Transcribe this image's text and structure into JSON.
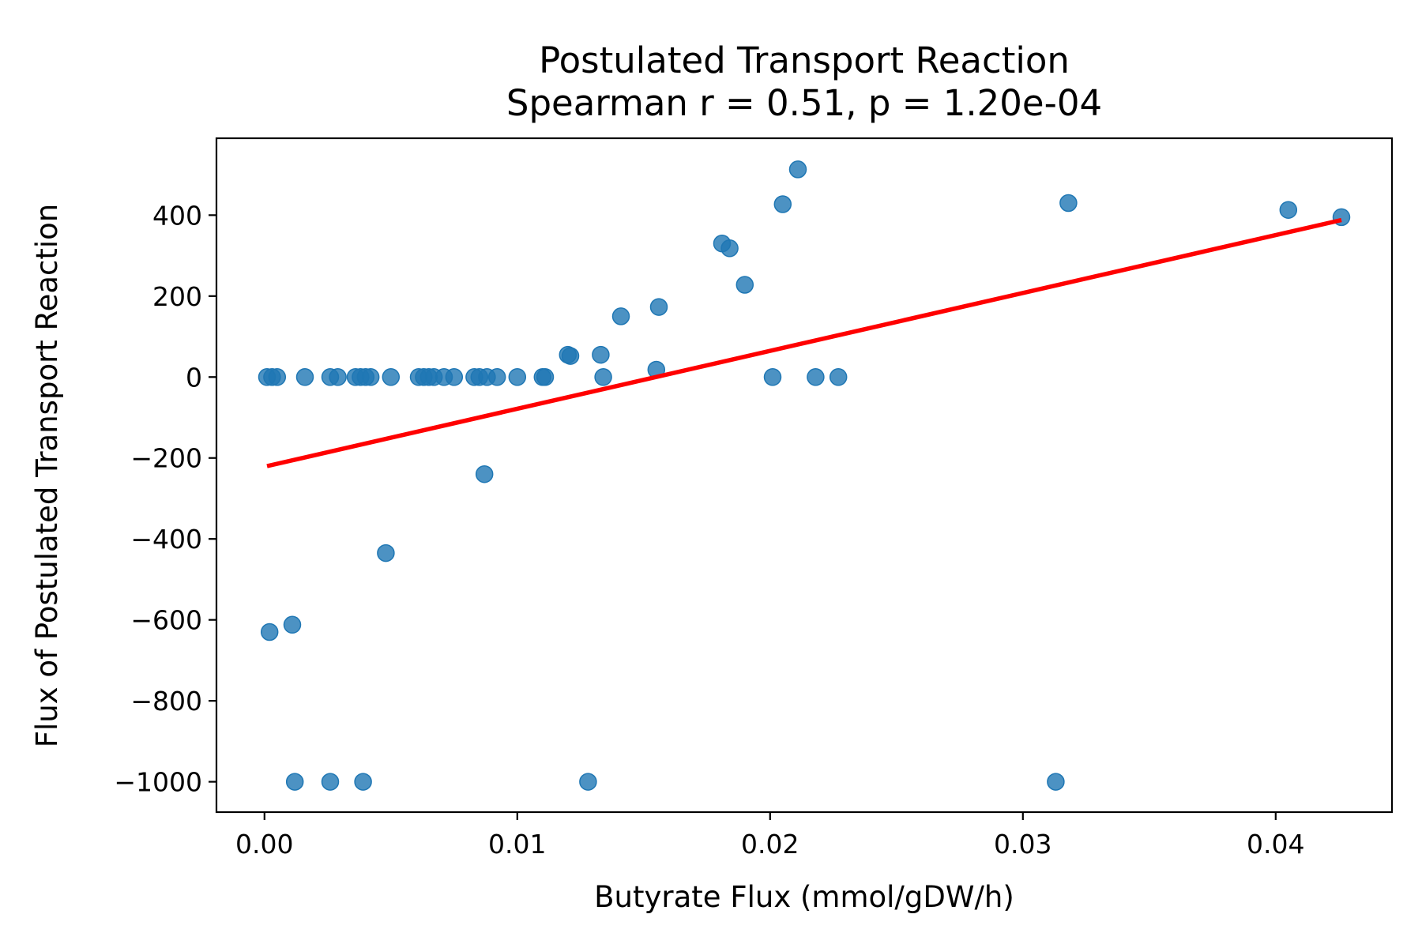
{
  "chart_data": {
    "type": "scatter",
    "title": "Postulated Transport Reaction",
    "subtitle": "Spearman r = 0.51, p = 1.20e-04",
    "xlabel": "Butyrate Flux (mmol/gDW/h)",
    "ylabel": "Flux of Postulated Transport Reaction",
    "xlim": [
      -0.0019,
      0.0446
    ],
    "ylim": [
      -1075,
      590
    ],
    "xticks": [
      0.0,
      0.01,
      0.02,
      0.03,
      0.04
    ],
    "xtick_labels": [
      "0.00",
      "0.01",
      "0.02",
      "0.03",
      "0.04"
    ],
    "yticks": [
      400,
      200,
      0,
      -200,
      -400,
      -600,
      -800,
      -1000
    ],
    "ytick_labels": [
      "400",
      "200",
      "0",
      "−200",
      "−400",
      "−600",
      "−800",
      "−1000"
    ],
    "grid": false,
    "point_color": "#1f77b4",
    "line_color": "#ff0000",
    "points": [
      {
        "x": 0.0001,
        "y": 0
      },
      {
        "x": 0.0003,
        "y": 0
      },
      {
        "x": 0.0005,
        "y": 0
      },
      {
        "x": 0.0016,
        "y": 0
      },
      {
        "x": 0.0026,
        "y": 0
      },
      {
        "x": 0.0029,
        "y": 0
      },
      {
        "x": 0.0036,
        "y": 0
      },
      {
        "x": 0.0038,
        "y": 0
      },
      {
        "x": 0.004,
        "y": 0
      },
      {
        "x": 0.0042,
        "y": 0
      },
      {
        "x": 0.005,
        "y": 0
      },
      {
        "x": 0.0061,
        "y": 0
      },
      {
        "x": 0.0063,
        "y": 0
      },
      {
        "x": 0.0065,
        "y": 0
      },
      {
        "x": 0.0067,
        "y": 0
      },
      {
        "x": 0.0071,
        "y": 0
      },
      {
        "x": 0.0075,
        "y": 0
      },
      {
        "x": 0.0083,
        "y": 0
      },
      {
        "x": 0.0085,
        "y": 0
      },
      {
        "x": 0.0088,
        "y": 0
      },
      {
        "x": 0.0092,
        "y": 0
      },
      {
        "x": 0.01,
        "y": 0
      },
      {
        "x": 0.011,
        "y": 0
      },
      {
        "x": 0.0111,
        "y": 0
      },
      {
        "x": 0.0134,
        "y": 0
      },
      {
        "x": 0.0201,
        "y": 0
      },
      {
        "x": 0.0218,
        "y": 0
      },
      {
        "x": 0.0227,
        "y": 0
      },
      {
        "x": 0.012,
        "y": 55
      },
      {
        "x": 0.0121,
        "y": 52
      },
      {
        "x": 0.0133,
        "y": 55
      },
      {
        "x": 0.0141,
        "y": 150
      },
      {
        "x": 0.0156,
        "y": 173
      },
      {
        "x": 0.0155,
        "y": 18
      },
      {
        "x": 0.0181,
        "y": 330
      },
      {
        "x": 0.0184,
        "y": 318
      },
      {
        "x": 0.019,
        "y": 228
      },
      {
        "x": 0.0205,
        "y": 427
      },
      {
        "x": 0.0211,
        "y": 513
      },
      {
        "x": 0.0318,
        "y": 430
      },
      {
        "x": 0.0405,
        "y": 413
      },
      {
        "x": 0.0426,
        "y": 395
      },
      {
        "x": 0.0087,
        "y": -240
      },
      {
        "x": 0.0048,
        "y": -435
      },
      {
        "x": 0.0002,
        "y": -630
      },
      {
        "x": 0.0011,
        "y": -612
      },
      {
        "x": 0.0012,
        "y": -1000
      },
      {
        "x": 0.0026,
        "y": -1000
      },
      {
        "x": 0.0039,
        "y": -1000
      },
      {
        "x": 0.0128,
        "y": -1000
      },
      {
        "x": 0.0313,
        "y": -1000
      }
    ],
    "fit_line": {
      "x": [
        0.0001,
        0.0426
      ],
      "y": [
        -220,
        388
      ]
    }
  }
}
